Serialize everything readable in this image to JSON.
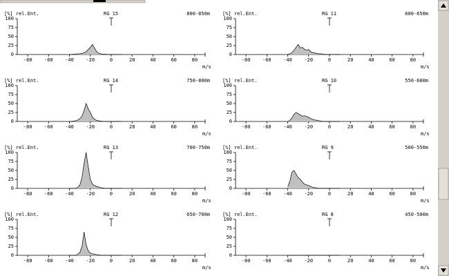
{
  "chart_data": [
    {
      "type": "area",
      "ylabel": "[%] rel.Ent.",
      "title": "RG 15",
      "subtitle": "800-850m",
      "xlabel": "m/s",
      "color": "#c0c0c0",
      "x": [
        -40,
        -38,
        -36,
        -34,
        -32,
        -30,
        -28,
        -26,
        -24,
        -22,
        -20,
        -18,
        -16,
        -14,
        -12,
        -10,
        -8,
        -6,
        -4,
        -2,
        0,
        2,
        4,
        6,
        8,
        10
      ],
      "values": [
        0,
        0,
        1,
        1,
        2,
        2,
        3,
        5,
        8,
        14,
        20,
        28,
        18,
        8,
        4,
        2,
        1,
        1,
        0,
        0,
        0,
        0,
        0,
        0,
        0,
        0
      ],
      "xlim": [
        -90,
        90
      ],
      "ylim": [
        0,
        100
      ],
      "xticks": [
        -80,
        -60,
        -40,
        -20,
        0,
        20,
        40,
        60,
        80
      ],
      "yticks": [
        0,
        25,
        50,
        75,
        100
      ]
    },
    {
      "type": "area",
      "ylabel": "[%] rel.Ent.",
      "title": "RG 14",
      "subtitle": "750-800m",
      "xlabel": "m/s",
      "color": "#c0c0c0",
      "x": [
        -40,
        -38,
        -36,
        -34,
        -32,
        -30,
        -28,
        -26,
        -24,
        -22,
        -20,
        -18,
        -16,
        -14,
        -12,
        -10,
        -8,
        -6,
        -4,
        -2,
        0,
        2,
        4,
        6,
        8,
        10
      ],
      "values": [
        0,
        0,
        1,
        2,
        4,
        8,
        15,
        30,
        50,
        35,
        25,
        12,
        6,
        3,
        2,
        1,
        0,
        0,
        0,
        0,
        0,
        0,
        0,
        0,
        0,
        0
      ],
      "xlim": [
        -90,
        90
      ],
      "ylim": [
        0,
        100
      ],
      "xticks": [
        -80,
        -60,
        -40,
        -20,
        0,
        20,
        40,
        60,
        80
      ],
      "yticks": [
        0,
        25,
        50,
        75,
        100
      ]
    },
    {
      "type": "area",
      "ylabel": "[%] rel.Ent.",
      "title": "RG 13",
      "subtitle": "700-750m",
      "xlabel": "m/s",
      "color": "#c0c0c0",
      "x": [
        -40,
        -38,
        -36,
        -34,
        -32,
        -30,
        -28,
        -26,
        -24,
        -22,
        -20,
        -18,
        -16,
        -14,
        -12,
        -10,
        -8,
        -6,
        -4,
        -2,
        0,
        2,
        4,
        6,
        8,
        10
      ],
      "values": [
        0,
        0,
        0,
        0,
        3,
        10,
        30,
        70,
        100,
        60,
        25,
        12,
        8,
        5,
        4,
        2,
        1,
        0,
        0,
        0,
        0,
        0,
        0,
        0,
        0,
        0
      ],
      "xlim": [
        -90,
        90
      ],
      "ylim": [
        0,
        100
      ],
      "xticks": [
        -80,
        -60,
        -40,
        -20,
        0,
        20,
        40,
        60,
        80
      ],
      "yticks": [
        0,
        25,
        50,
        75,
        100
      ]
    },
    {
      "type": "area",
      "ylabel": "[%] rel.Ent.",
      "title": "RG 12",
      "subtitle": "650-700m",
      "xlabel": "m/s",
      "color": "#c0c0c0",
      "x": [
        -40,
        -38,
        -36,
        -34,
        -32,
        -30,
        -28,
        -26,
        -24,
        -22,
        -20,
        -18,
        -16,
        -14,
        -12,
        -10,
        -8,
        -6,
        -4,
        -2,
        0,
        2,
        4,
        6,
        8,
        10
      ],
      "values": [
        0,
        0,
        0,
        0,
        3,
        8,
        25,
        65,
        30,
        12,
        6,
        4,
        3,
        2,
        1,
        0,
        0,
        0,
        0,
        0,
        0,
        0,
        0,
        0,
        0,
        0
      ],
      "xlim": [
        -90,
        90
      ],
      "ylim": [
        0,
        100
      ],
      "xticks": [
        -80,
        -60,
        -40,
        -20,
        0,
        20,
        40,
        60,
        80
      ],
      "yticks": [
        0,
        25,
        50,
        75,
        100
      ]
    },
    {
      "type": "area",
      "ylabel": "[%] rel.Ent.",
      "title": "RG 11",
      "subtitle": "600-650m",
      "xlabel": "m/s",
      "color": "#c0c0c0",
      "x": [
        -40,
        -38,
        -36,
        -34,
        -32,
        -30,
        -28,
        -26,
        -24,
        -22,
        -20,
        -18,
        -16,
        -14,
        -12,
        -10,
        -8,
        -6,
        -4,
        -2,
        0,
        2,
        4,
        6,
        8,
        10
      ],
      "values": [
        0,
        2,
        5,
        12,
        20,
        28,
        18,
        20,
        15,
        12,
        14,
        8,
        5,
        4,
        3,
        2,
        2,
        1,
        0,
        0,
        0,
        0,
        0,
        0,
        0,
        0
      ],
      "xlim": [
        -90,
        90
      ],
      "ylim": [
        0,
        100
      ],
      "xticks": [
        -80,
        -60,
        -40,
        -20,
        0,
        20,
        40,
        60,
        80
      ],
      "yticks": [
        0,
        25,
        50,
        75,
        100
      ]
    },
    {
      "type": "area",
      "ylabel": "[%] rel.Ent.",
      "title": "RG 10",
      "subtitle": "550-600m",
      "xlabel": "m/s",
      "color": "#c0c0c0",
      "x": [
        -40,
        -38,
        -36,
        -34,
        -32,
        -30,
        -28,
        -26,
        -24,
        -22,
        -20,
        -18,
        -16,
        -14,
        -12,
        -10,
        -8,
        -6,
        -4,
        -2,
        0,
        2,
        4,
        6,
        8,
        10
      ],
      "values": [
        0,
        3,
        10,
        20,
        25,
        22,
        18,
        15,
        16,
        14,
        12,
        8,
        6,
        4,
        3,
        2,
        1,
        0,
        0,
        0,
        0,
        0,
        0,
        0,
        0,
        0
      ],
      "xlim": [
        -90,
        90
      ],
      "ylim": [
        0,
        100
      ],
      "xticks": [
        -80,
        -60,
        -40,
        -20,
        0,
        20,
        40,
        60,
        80
      ],
      "yticks": [
        0,
        25,
        50,
        75,
        100
      ]
    },
    {
      "type": "area",
      "ylabel": "[%] rel.Ent.",
      "title": "RG 9",
      "subtitle": "500-550m",
      "xlabel": "m/s",
      "color": "#c0c0c0",
      "x": [
        -40,
        -38,
        -36,
        -34,
        -32,
        -30,
        -28,
        -26,
        -24,
        -22,
        -20,
        -18,
        -16,
        -14,
        -12,
        -10,
        -8,
        -6,
        -4,
        -2,
        0,
        2,
        4,
        6,
        8,
        10
      ],
      "values": [
        5,
        20,
        45,
        50,
        40,
        30,
        25,
        18,
        12,
        10,
        8,
        5,
        3,
        2,
        1,
        0,
        0,
        0,
        0,
        0,
        0,
        0,
        0,
        0,
        0,
        0
      ],
      "xlim": [
        -90,
        90
      ],
      "ylim": [
        0,
        100
      ],
      "xticks": [
        -80,
        -60,
        -40,
        -20,
        0,
        20,
        40,
        60,
        80
      ],
      "yticks": [
        0,
        25,
        50,
        75,
        100
      ]
    },
    {
      "type": "area",
      "ylabel": "[%] rel.Ent.",
      "title": "RG 8",
      "subtitle": "450-500m",
      "xlabel": "m/s",
      "color": "#c0c0c0",
      "x": [
        -40,
        -38,
        -36,
        -34,
        -32,
        -30,
        -28,
        -26,
        -24,
        -22,
        -20,
        -18,
        -16,
        -14,
        -12,
        -10,
        -8,
        -6,
        -4,
        -2,
        0,
        2,
        4,
        6,
        8,
        10
      ],
      "values": [
        0,
        0,
        0,
        0,
        0,
        0,
        0,
        0,
        0,
        0,
        0,
        0,
        0,
        0,
        0,
        0,
        0,
        0,
        0,
        0,
        0,
        0,
        0,
        0,
        0,
        0
      ],
      "xlim": [
        -90,
        90
      ],
      "ylim": [
        0,
        100
      ],
      "xticks": [
        -80,
        -60,
        -40,
        -20,
        0,
        20,
        40,
        60,
        80
      ],
      "yticks": [
        0,
        25,
        50,
        75,
        100
      ]
    }
  ]
}
